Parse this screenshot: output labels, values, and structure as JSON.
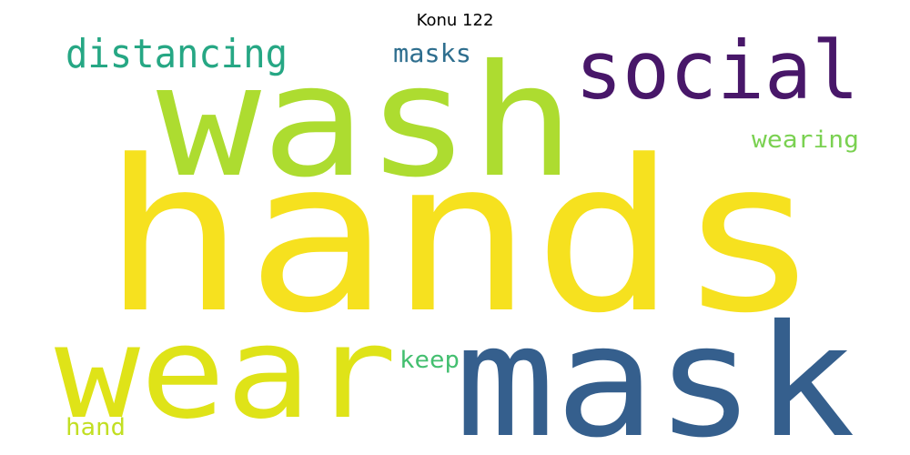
{
  "title": "Konu 122",
  "words": [
    {
      "text": "hands",
      "color": "#f6e11f"
    },
    {
      "text": "wash",
      "color": "#addc30"
    },
    {
      "text": "mask",
      "color": "#355f8d"
    },
    {
      "text": "wear",
      "color": "#dfe318"
    },
    {
      "text": "social",
      "color": "#481769"
    },
    {
      "text": "distancing",
      "color": "#26a784"
    },
    {
      "text": "masks",
      "color": "#2e6e8e"
    },
    {
      "text": "wearing",
      "color": "#7ad151"
    },
    {
      "text": "keep",
      "color": "#44bf70"
    },
    {
      "text": "hand",
      "color": "#c2df23"
    }
  ]
}
